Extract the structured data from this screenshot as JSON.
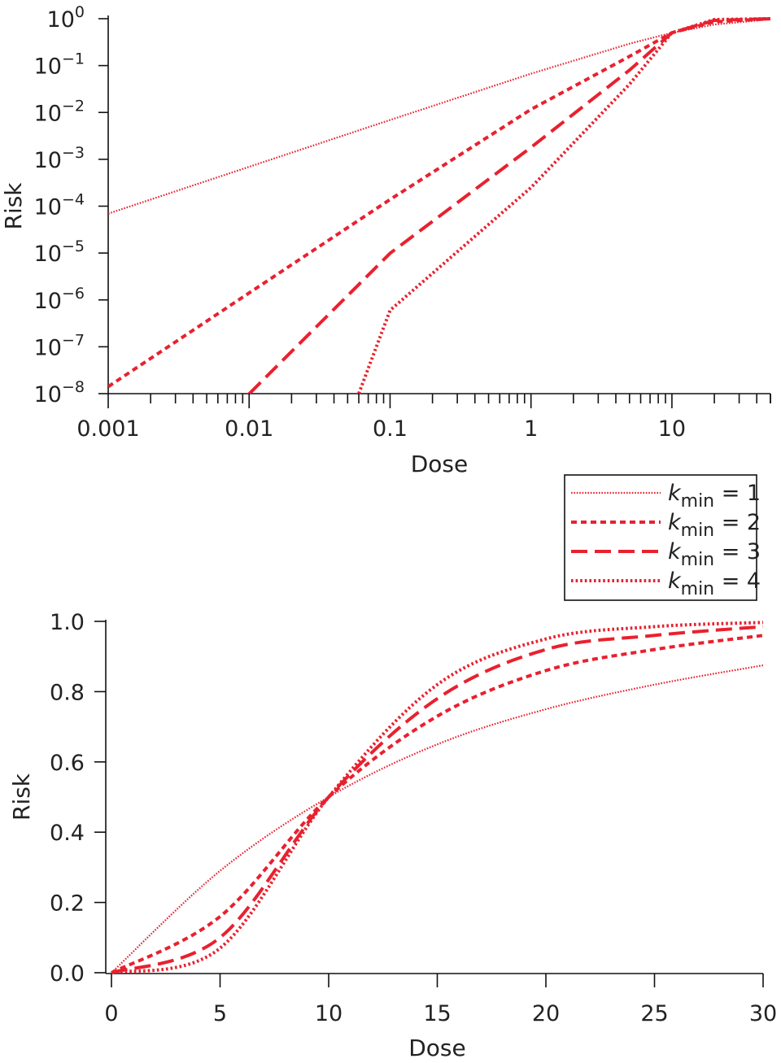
{
  "chart_data": [
    {
      "type": "line",
      "xlabel": "Dose",
      "ylabel": "Risk",
      "xscale": "log",
      "yscale": "log",
      "xlim": [
        0.001,
        50
      ],
      "ylim": [
        1e-08,
        1
      ],
      "xticks": [
        {
          "value": 0.001,
          "label": "0.001"
        },
        {
          "value": 0.01,
          "label": "0.01"
        },
        {
          "value": 0.1,
          "label": "0.1"
        },
        {
          "value": 1,
          "label": "1"
        },
        {
          "value": 10,
          "label": "10"
        }
      ],
      "yticks": [
        {
          "value": 1,
          "base": "10",
          "exp": "0"
        },
        {
          "value": 0.1,
          "base": "10",
          "exp": "−1"
        },
        {
          "value": 0.01,
          "base": "10",
          "exp": "−2"
        },
        {
          "value": 0.001,
          "base": "10",
          "exp": "−3"
        },
        {
          "value": 0.0001,
          "base": "10",
          "exp": "−4"
        },
        {
          "value": 1e-05,
          "base": "10",
          "exp": "−5"
        },
        {
          "value": 1e-06,
          "base": "10",
          "exp": "−6"
        },
        {
          "value": 1e-07,
          "base": "10",
          "exp": "−7"
        },
        {
          "value": 1e-08,
          "base": "10",
          "exp": "−8"
        }
      ],
      "series": [
        {
          "name": "k_min = 1",
          "kmin": 1,
          "x": [
            0.001,
            0.01,
            0.1,
            1,
            5,
            10,
            20,
            50
          ],
          "y": [
            6.93e-05,
            0.000693,
            0.0069,
            0.067,
            0.293,
            0.5,
            0.75,
            0.97
          ]
        },
        {
          "name": "k_min = 2",
          "kmin": 2,
          "x": [
            0.001,
            0.01,
            0.1,
            1,
            5,
            10,
            20,
            50
          ],
          "y": [
            1.41e-08,
            1.41e-06,
            0.000139,
            0.0116,
            0.157,
            0.5,
            0.86,
            1.0
          ]
        },
        {
          "name": "k_min = 3",
          "kmin": 3,
          "x": [
            0.01,
            0.1,
            1,
            5,
            10,
            20,
            50
          ],
          "y": [
            9.9e-09,
            9.9e-06,
            0.0018,
            0.08,
            0.5,
            0.92,
            1.0
          ]
        },
        {
          "name": "k_min = 4",
          "kmin": 4,
          "x": [
            0.06,
            0.1,
            1,
            5,
            10,
            20,
            50
          ],
          "y": [
            1e-08,
            6e-07,
            0.00025,
            0.04,
            0.5,
            0.96,
            1.0
          ]
        }
      ]
    },
    {
      "type": "line",
      "xlabel": "Dose",
      "ylabel": "Risk",
      "xlim": [
        0,
        30
      ],
      "ylim": [
        0,
        1
      ],
      "xticks": [
        {
          "value": 0,
          "label": "0"
        },
        {
          "value": 5,
          "label": "5"
        },
        {
          "value": 10,
          "label": "10"
        },
        {
          "value": 15,
          "label": "15"
        },
        {
          "value": 20,
          "label": "20"
        },
        {
          "value": 25,
          "label": "25"
        },
        {
          "value": 30,
          "label": "30"
        }
      ],
      "yticks": [
        {
          "value": 0,
          "label": "0.0"
        },
        {
          "value": 0.2,
          "label": "0.2"
        },
        {
          "value": 0.4,
          "label": "0.4"
        },
        {
          "value": 0.6,
          "label": "0.6"
        },
        {
          "value": 0.8,
          "label": "0.8"
        },
        {
          "value": 1.0,
          "label": "1.0"
        }
      ],
      "series": [
        {
          "name": "k_min = 1",
          "kmin": 1,
          "x": [
            0,
            5,
            10,
            15,
            20,
            25,
            30
          ],
          "y": [
            0,
            0.29,
            0.5,
            0.65,
            0.75,
            0.82,
            0.875
          ]
        },
        {
          "name": "k_min = 2",
          "kmin": 2,
          "x": [
            0,
            5,
            10,
            15,
            20,
            25,
            30
          ],
          "y": [
            0,
            0.16,
            0.5,
            0.73,
            0.86,
            0.92,
            0.96
          ]
        },
        {
          "name": "k_min = 3",
          "kmin": 3,
          "x": [
            0,
            5,
            10,
            15,
            20,
            25,
            30
          ],
          "y": [
            0,
            0.1,
            0.5,
            0.78,
            0.92,
            0.96,
            0.985
          ]
        },
        {
          "name": "k_min = 4",
          "kmin": 4,
          "x": [
            0,
            5,
            10,
            15,
            20,
            25,
            30
          ],
          "y": [
            0,
            0.07,
            0.5,
            0.82,
            0.95,
            0.985,
            0.997
          ]
        }
      ]
    }
  ],
  "legend": {
    "position": "right, between panels",
    "entries": [
      {
        "italic": "k",
        "sub": "min",
        "rest": " = 1",
        "kmin": 1
      },
      {
        "italic": "k",
        "sub": "min",
        "rest": " = 2",
        "kmin": 2
      },
      {
        "italic": "k",
        "sub": "min",
        "rest": " = 3",
        "kmin": 3
      },
      {
        "italic": "k",
        "sub": "min",
        "rest": " = 4",
        "kmin": 4
      }
    ]
  },
  "colors": {
    "series": "#e8212f",
    "axis": "#111111"
  }
}
